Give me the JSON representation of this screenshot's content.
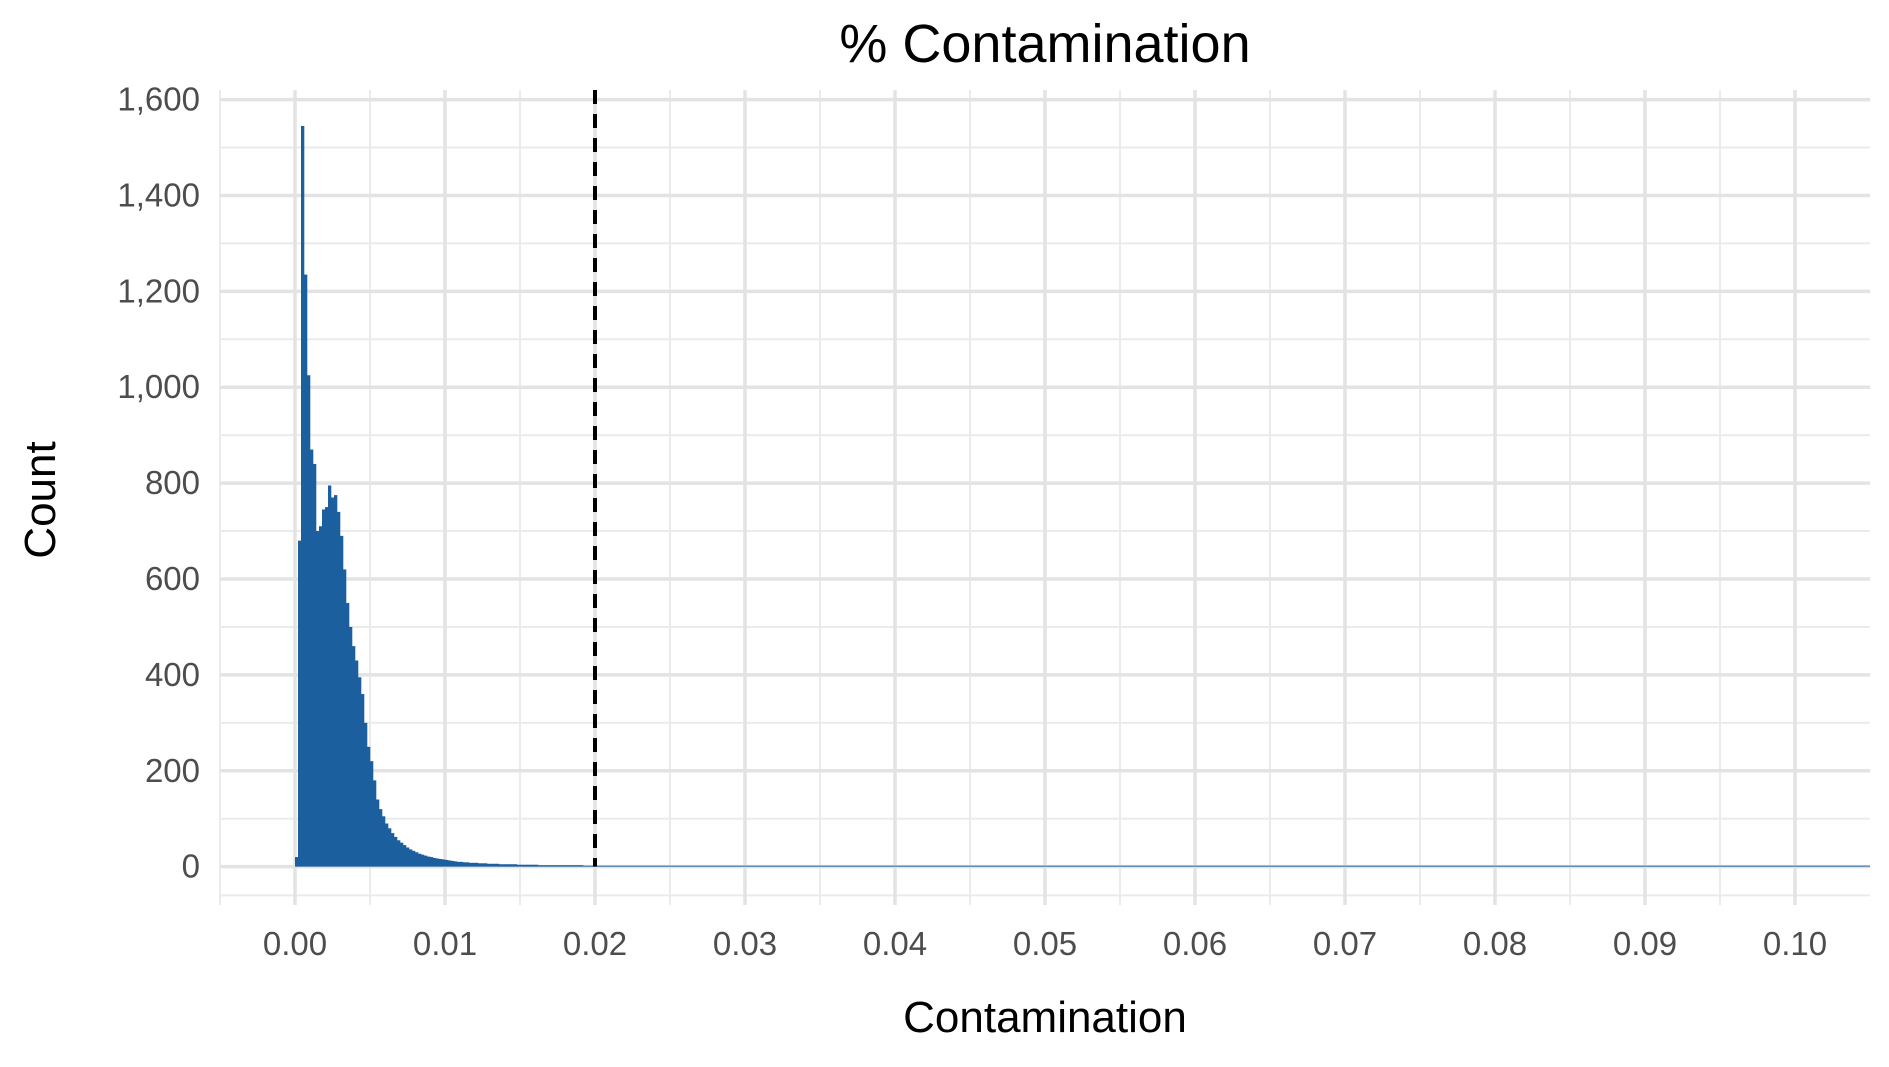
{
  "chart_data": {
    "type": "histogram",
    "title": "% Contamination",
    "xlabel": "Contamination",
    "ylabel": "Count",
    "xlim": [
      -0.005,
      0.105
    ],
    "ylim": [
      -80,
      1620
    ],
    "x_ticks": [
      0.0,
      0.01,
      0.02,
      0.03,
      0.04,
      0.05,
      0.06,
      0.07,
      0.08,
      0.09,
      0.1
    ],
    "x_tick_labels": [
      "0.00",
      "0.01",
      "0.02",
      "0.03",
      "0.04",
      "0.05",
      "0.06",
      "0.07",
      "0.08",
      "0.09",
      "0.10"
    ],
    "y_ticks": [
      0,
      200,
      400,
      600,
      800,
      1000,
      1200,
      1400,
      1600
    ],
    "y_tick_labels": [
      "0",
      "200",
      "400",
      "600",
      "800",
      "1,000",
      "1,200",
      "1,400",
      "1,600"
    ],
    "grid": true,
    "bar_color": "#1c5f9f",
    "bin_width": 0.0002,
    "bin_start": 0.0,
    "counts": [
      20,
      680,
      1545,
      1235,
      1025,
      870,
      840,
      700,
      710,
      745,
      750,
      795,
      770,
      775,
      740,
      690,
      620,
      550,
      500,
      460,
      430,
      395,
      360,
      300,
      250,
      220,
      180,
      140,
      120,
      105,
      90,
      80,
      70,
      62,
      55,
      50,
      45,
      40,
      36,
      33,
      30,
      27,
      25,
      23,
      21,
      20,
      18,
      17,
      16,
      15,
      14,
      13,
      12,
      11,
      10,
      10,
      9,
      9,
      8,
      8,
      8,
      7,
      7,
      7,
      6,
      6,
      6,
      6,
      5,
      5,
      5,
      5,
      5,
      5,
      4,
      4,
      4,
      4,
      4,
      4,
      4,
      3,
      3,
      3,
      3,
      3,
      3,
      3,
      3,
      3,
      3,
      3,
      3,
      3,
      3,
      3,
      2,
      2,
      2,
      2
    ],
    "tail_count": 2,
    "tail_end": 0.105,
    "reference_line": {
      "x": 0.02,
      "style": "dashed",
      "color": "#000000"
    }
  }
}
